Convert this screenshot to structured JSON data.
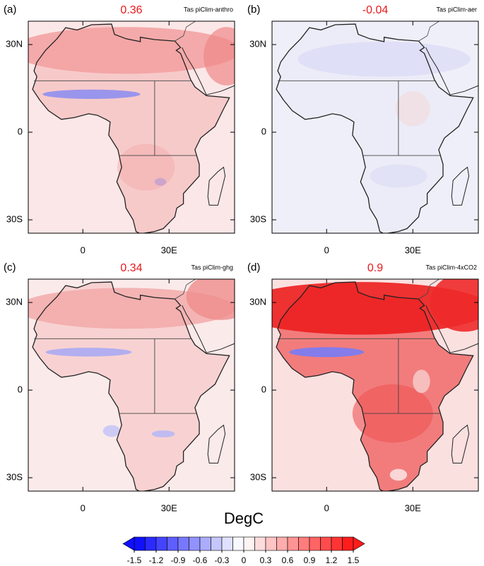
{
  "panels": [
    {
      "label": "(a)",
      "mean": 0.36,
      "title": "Tas piClim-anthro",
      "yticks": [
        {
          "value": 30,
          "label": "30N"
        },
        0,
        {
          "value": -30,
          "label": "30S"
        }
      ],
      "xticks": [
        0,
        {
          "value": 30,
          "label": "30E"
        }
      ]
    },
    {
      "label": "(b)",
      "mean": -0.04,
      "title": "Tas piClim-aer",
      "yticks": [
        {
          "value": 30,
          "label": "30N"
        },
        0,
        {
          "value": -30,
          "label": "30S"
        }
      ],
      "xticks": [
        0,
        {
          "value": 30,
          "label": "30E"
        }
      ]
    },
    {
      "label": "(c)",
      "mean": 0.34,
      "title": "Tas piClim-ghg",
      "yticks": [
        {
          "value": 30,
          "label": "30N"
        },
        0,
        {
          "value": -30,
          "label": "30S"
        }
      ],
      "xticks": [
        0,
        {
          "value": 30,
          "label": "30E"
        }
      ]
    },
    {
      "label": "(d)",
      "mean": 0.9,
      "title": "Tas piClim-4xCO2",
      "yticks": [
        {
          "value": 30,
          "label": "30N"
        },
        0,
        {
          "value": -30,
          "label": "30S"
        }
      ],
      "xticks": [
        0,
        {
          "value": 30,
          "label": "30E"
        }
      ]
    }
  ],
  "colorbar": {
    "title": "DegC",
    "ticks": [
      -1.5,
      -1.2,
      -0.9,
      -0.6,
      -0.3,
      0,
      0.3,
      0.6,
      0.9,
      1.2,
      1.5
    ],
    "colors": [
      "#1010ff",
      "#2a2aff",
      "#4444ff",
      "#5e5eff",
      "#7878ff",
      "#9292ff",
      "#acacff",
      "#c6c6ff",
      "#e0e0ff",
      "#f8f8ff",
      "#fff4f4",
      "#ffdcdc",
      "#ffc4c4",
      "#ffacac",
      "#ff9494",
      "#ff7c7c",
      "#ff6464",
      "#ff4c4c",
      "#ff3434",
      "#ff1c1c"
    ]
  }
}
